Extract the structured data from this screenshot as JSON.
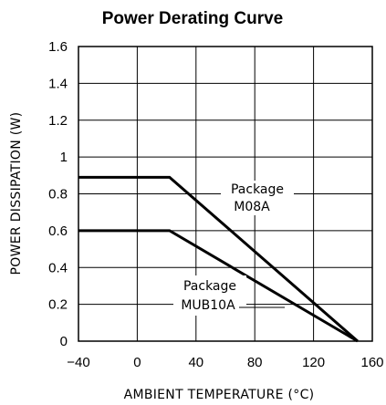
{
  "chart_data": {
    "type": "line",
    "title": "Power Derating Curve",
    "xlabel": "AMBIENT TEMPERATURE (°C)",
    "ylabel": "POWER DISSIPATION (W)",
    "xlim": [
      -40,
      160
    ],
    "ylim": [
      0,
      1.6
    ],
    "x_ticks": [
      -40,
      0,
      40,
      80,
      120,
      160
    ],
    "y_ticks": [
      0,
      0.2,
      0.4,
      0.6,
      0.8,
      1,
      1.2,
      1.4,
      1.6
    ],
    "x_tick_labels": [
      "−40",
      "0",
      "40",
      "80",
      "120",
      "160"
    ],
    "y_tick_labels": [
      "0",
      "0.2",
      "0.4",
      "0.6",
      "0.8",
      "1",
      "1.2",
      "1.4",
      "1.6"
    ],
    "grid": true,
    "series": [
      {
        "x": [
          -40,
          22,
          150
        ],
        "y": [
          0.89,
          0.89,
          0
        ]
      },
      {
        "x": [
          -40,
          22,
          150
        ],
        "y": [
          0.6,
          0.6,
          0
        ]
      }
    ],
    "annotations": [
      {
        "line1": "Package",
        "line2": "M08A"
      },
      {
        "line1": "Package",
        "line2": "MUB10A"
      }
    ]
  }
}
